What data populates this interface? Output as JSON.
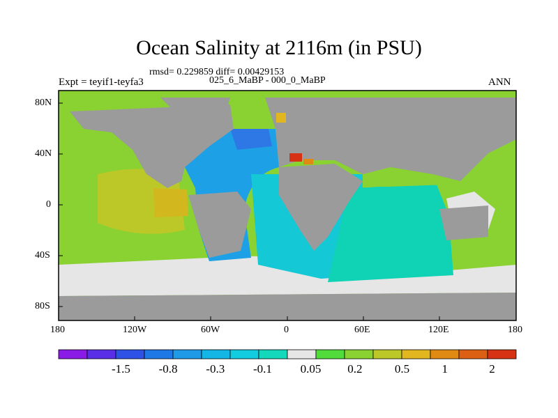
{
  "title": "Ocean Salinity at 2116m (in PSU)",
  "stats_line": "rmsd= 0.229859 diff= 0.00429153",
  "experiment_label": "Expt = teyif1-teyfa3",
  "period_label": "025_6_MaBP - 000_0_MaBP",
  "season_label": "ANN",
  "lat_labels": [
    "80N",
    "40N",
    "0",
    "40S",
    "80S"
  ],
  "lon_labels": [
    "180",
    "120W",
    "60W",
    "0",
    "60E",
    "120E",
    "180"
  ],
  "colorbar": {
    "colors": [
      "#8a1ae6",
      "#5a2ee6",
      "#2e52e6",
      "#1e78e6",
      "#1e9ae6",
      "#14b6e6",
      "#14cce0",
      "#14d8bc",
      "#e6e6e6",
      "#52dc3c",
      "#8ad232",
      "#bcc828",
      "#e2b61e",
      "#e08a14",
      "#dc6014",
      "#d83214"
    ],
    "labels": [
      "-1.5",
      "-0.8",
      "-0.3",
      "-0.1",
      "0.05",
      "0.2",
      "0.5",
      "1",
      "2"
    ]
  },
  "colors": {
    "land": "#9b9b9b",
    "atlantic_deep": "#1ea0e6",
    "indian": "#10d2b4",
    "pacific_north": "#8ad232",
    "pacific_tropical": "#bcc828",
    "southern": "#e6e6e6"
  }
}
